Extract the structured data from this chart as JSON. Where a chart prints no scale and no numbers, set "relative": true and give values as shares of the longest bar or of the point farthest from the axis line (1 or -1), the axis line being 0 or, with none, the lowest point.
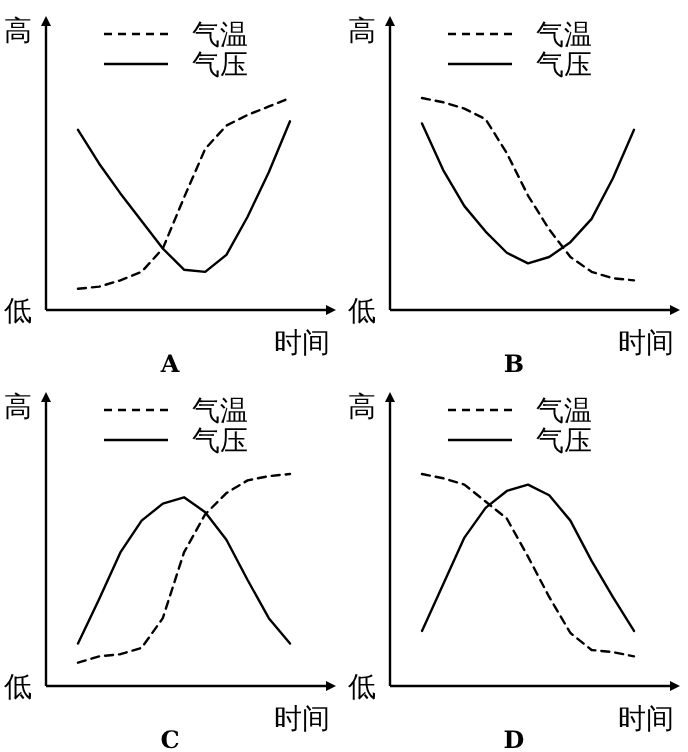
{
  "chart_data": [
    {
      "type": "line",
      "title": "A",
      "xlabel": "时间",
      "annotations": [
        "高",
        "低"
      ],
      "relative": true,
      "legend": "top right",
      "marker": "none",
      "categories": [
        null,
        null,
        null,
        null,
        null,
        null,
        null,
        null,
        null,
        null,
        null
      ],
      "series": [
        {
          "name": "气温",
          "color": "#000000",
          "line_style": "dashed",
          "values": [
            0.1,
            0.11,
            0.14,
            0.18,
            0.29,
            0.53,
            0.76,
            0.87,
            0.92,
            0.96,
            1.0
          ]
        },
        {
          "name": "气压",
          "color": "#000000",
          "line_style": "solid",
          "values": [
            0.85,
            0.69,
            0.55,
            0.42,
            0.29,
            0.19,
            0.18,
            0.26,
            0.44,
            0.65,
            0.89
          ]
        }
      ]
    },
    {
      "type": "line",
      "title": "B",
      "xlabel": "时间",
      "annotations": [
        "高",
        "低"
      ],
      "relative": true,
      "legend": "top right",
      "marker": "none",
      "categories": [
        null,
        null,
        null,
        null,
        null,
        null,
        null,
        null,
        null,
        null,
        null
      ],
      "series": [
        {
          "name": "气温",
          "color": "#000000",
          "line_style": "dashed",
          "values": [
            1.0,
            0.98,
            0.95,
            0.9,
            0.74,
            0.54,
            0.38,
            0.25,
            0.18,
            0.15,
            0.14
          ]
        },
        {
          "name": "气压",
          "color": "#000000",
          "line_style": "solid",
          "values": [
            0.88,
            0.66,
            0.49,
            0.37,
            0.27,
            0.22,
            0.25,
            0.32,
            0.43,
            0.62,
            0.85
          ]
        }
      ]
    },
    {
      "type": "line",
      "title": "C",
      "xlabel": "时间",
      "annotations": [
        "高",
        "低"
      ],
      "relative": true,
      "legend": "top right",
      "marker": "none",
      "categories": [
        null,
        null,
        null,
        null,
        null,
        null,
        null,
        null,
        null,
        null,
        null
      ],
      "series": [
        {
          "name": "气温",
          "color": "#000000",
          "line_style": "dashed",
          "values": [
            0.11,
            0.14,
            0.15,
            0.18,
            0.32,
            0.63,
            0.81,
            0.91,
            0.97,
            0.99,
            1.0
          ]
        },
        {
          "name": "气压",
          "color": "#000000",
          "line_style": "solid",
          "values": [
            0.2,
            0.41,
            0.63,
            0.78,
            0.86,
            0.89,
            0.82,
            0.69,
            0.5,
            0.32,
            0.2
          ]
        }
      ]
    },
    {
      "type": "line",
      "title": "D",
      "xlabel": "时间",
      "annotations": [
        "高",
        "低"
      ],
      "relative": true,
      "legend": "top right",
      "marker": "none",
      "categories": [
        null,
        null,
        null,
        null,
        null,
        null,
        null,
        null,
        null,
        null,
        null
      ],
      "series": [
        {
          "name": "气温",
          "color": "#000000",
          "line_style": "dashed",
          "values": [
            1.0,
            0.98,
            0.95,
            0.87,
            0.79,
            0.61,
            0.42,
            0.25,
            0.17,
            0.16,
            0.14
          ]
        },
        {
          "name": "气压",
          "color": "#000000",
          "line_style": "solid",
          "values": [
            0.26,
            0.48,
            0.7,
            0.84,
            0.92,
            0.95,
            0.9,
            0.78,
            0.59,
            0.42,
            0.26
          ]
        }
      ]
    }
  ]
}
